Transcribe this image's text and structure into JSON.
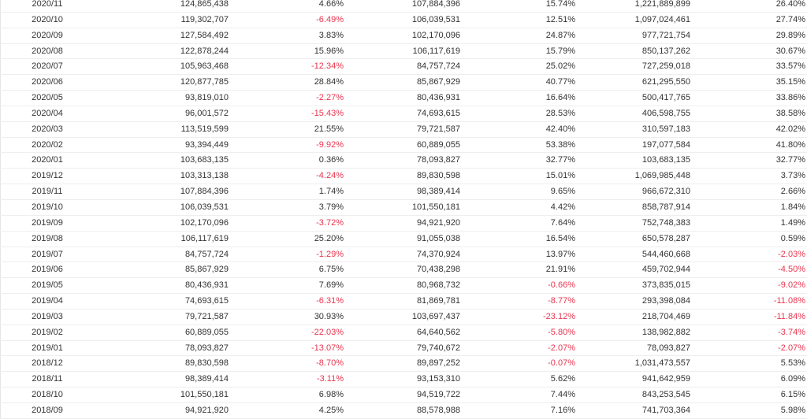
{
  "colors": {
    "negative": "#e8364f",
    "text": "#333333",
    "border": "#eeeeee"
  },
  "rows": [
    [
      "2020/11",
      "124,865,438",
      "4.66%",
      "107,884,396",
      "15.74%",
      "1,221,889,899",
      "26.40%"
    ],
    [
      "2020/10",
      "119,302,707",
      "-6.49%",
      "106,039,531",
      "12.51%",
      "1,097,024,461",
      "27.74%"
    ],
    [
      "2020/09",
      "127,584,492",
      "3.83%",
      "102,170,096",
      "24.87%",
      "977,721,754",
      "29.89%"
    ],
    [
      "2020/08",
      "122,878,244",
      "15.96%",
      "106,117,619",
      "15.79%",
      "850,137,262",
      "30.67%"
    ],
    [
      "2020/07",
      "105,963,468",
      "-12.34%",
      "84,757,724",
      "25.02%",
      "727,259,018",
      "33.57%"
    ],
    [
      "2020/06",
      "120,877,785",
      "28.84%",
      "85,867,929",
      "40.77%",
      "621,295,550",
      "35.15%"
    ],
    [
      "2020/05",
      "93,819,010",
      "-2.27%",
      "80,436,931",
      "16.64%",
      "500,417,765",
      "33.86%"
    ],
    [
      "2020/04",
      "96,001,572",
      "-15.43%",
      "74,693,615",
      "28.53%",
      "406,598,755",
      "38.58%"
    ],
    [
      "2020/03",
      "113,519,599",
      "21.55%",
      "79,721,587",
      "42.40%",
      "310,597,183",
      "42.02%"
    ],
    [
      "2020/02",
      "93,394,449",
      "-9.92%",
      "60,889,055",
      "53.38%",
      "197,077,584",
      "41.80%"
    ],
    [
      "2020/01",
      "103,683,135",
      "0.36%",
      "78,093,827",
      "32.77%",
      "103,683,135",
      "32.77%"
    ],
    [
      "2019/12",
      "103,313,138",
      "-4.24%",
      "89,830,598",
      "15.01%",
      "1,069,985,448",
      "3.73%"
    ],
    [
      "2019/11",
      "107,884,396",
      "1.74%",
      "98,389,414",
      "9.65%",
      "966,672,310",
      "2.66%"
    ],
    [
      "2019/10",
      "106,039,531",
      "3.79%",
      "101,550,181",
      "4.42%",
      "858,787,914",
      "1.84%"
    ],
    [
      "2019/09",
      "102,170,096",
      "-3.72%",
      "94,921,920",
      "7.64%",
      "752,748,383",
      "1.49%"
    ],
    [
      "2019/08",
      "106,117,619",
      "25.20%",
      "91,055,038",
      "16.54%",
      "650,578,287",
      "0.59%"
    ],
    [
      "2019/07",
      "84,757,724",
      "-1.29%",
      "74,370,924",
      "13.97%",
      "544,460,668",
      "-2.03%"
    ],
    [
      "2019/06",
      "85,867,929",
      "6.75%",
      "70,438,298",
      "21.91%",
      "459,702,944",
      "-4.50%"
    ],
    [
      "2019/05",
      "80,436,931",
      "7.69%",
      "80,968,732",
      "-0.66%",
      "373,835,015",
      "-9.02%"
    ],
    [
      "2019/04",
      "74,693,615",
      "-6.31%",
      "81,869,781",
      "-8.77%",
      "293,398,084",
      "-11.08%"
    ],
    [
      "2019/03",
      "79,721,587",
      "30.93%",
      "103,697,437",
      "-23.12%",
      "218,704,469",
      "-11.84%"
    ],
    [
      "2019/02",
      "60,889,055",
      "-22.03%",
      "64,640,562",
      "-5.80%",
      "138,982,882",
      "-3.74%"
    ],
    [
      "2019/01",
      "78,093,827",
      "-13.07%",
      "79,740,672",
      "-2.07%",
      "78,093,827",
      "-2.07%"
    ],
    [
      "2018/12",
      "89,830,598",
      "-8.70%",
      "89,897,252",
      "-0.07%",
      "1,031,473,557",
      "5.53%"
    ],
    [
      "2018/11",
      "98,389,414",
      "-3.11%",
      "93,153,310",
      "5.62%",
      "941,642,959",
      "6.09%"
    ],
    [
      "2018/10",
      "101,550,181",
      "6.98%",
      "94,519,722",
      "7.44%",
      "843,253,545",
      "6.15%"
    ],
    [
      "2018/09",
      "94,921,920",
      "4.25%",
      "88,578,988",
      "7.16%",
      "741,703,364",
      "5.98%"
    ]
  ]
}
